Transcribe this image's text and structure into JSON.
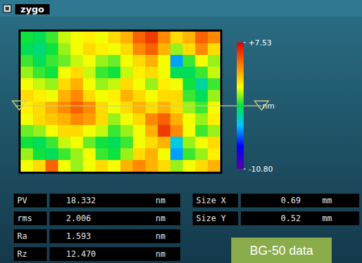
{
  "chart_data": {
    "type": "heatmap",
    "title": "zygo",
    "cells": [
      [
        -1.5,
        -2,
        -1,
        0.5,
        1,
        1.5,
        1,
        2,
        3,
        5,
        6,
        4,
        2,
        3,
        5,
        4
      ],
      [
        -2,
        -2.5,
        -1.5,
        0,
        1,
        2,
        1.5,
        1,
        2,
        4,
        5,
        3,
        0,
        2,
        4,
        2
      ],
      [
        -1,
        -2,
        -1,
        -0.5,
        0.5,
        1,
        0,
        -0.5,
        1,
        2,
        3,
        1,
        -5,
        -1,
        1,
        0
      ],
      [
        0,
        -1,
        -1.5,
        1,
        2,
        0.5,
        -1,
        -1.5,
        0.5,
        1.5,
        2,
        1,
        -2,
        -2,
        -1,
        0.5
      ],
      [
        1,
        0.5,
        0,
        2,
        3,
        1,
        0,
        0.5,
        2,
        1,
        0,
        1.5,
        1,
        -1.5,
        -3,
        -1
      ],
      [
        2,
        1.5,
        1,
        3,
        4,
        2,
        1,
        1.5,
        3,
        2,
        1,
        2,
        2,
        -1,
        -2,
        0
      ],
      [
        1.5,
        2,
        3,
        4,
        5,
        4,
        2,
        1,
        2,
        3,
        2,
        3,
        2,
        0,
        -1,
        1
      ],
      [
        1,
        2,
        2.5,
        3,
        4,
        3.5,
        2,
        0,
        1,
        2,
        4,
        5,
        3,
        1,
        0,
        1.5
      ],
      [
        -0.5,
        0,
        1,
        2,
        2,
        1,
        0.5,
        -1,
        0,
        1,
        3,
        6,
        4,
        1,
        -1,
        0
      ],
      [
        -1.5,
        -2,
        -1,
        0.5,
        1,
        -0.5,
        -1.5,
        -2,
        -1,
        1,
        2,
        3,
        -4,
        0,
        1,
        2
      ],
      [
        0,
        -1.5,
        -2,
        -1,
        0,
        1,
        -1,
        -1.5,
        0,
        2,
        3,
        1,
        -5,
        -1,
        0,
        1.5
      ],
      [
        1,
        2,
        5,
        1,
        0,
        1,
        2,
        1,
        3,
        4,
        3,
        2,
        0,
        1,
        2,
        3
      ]
    ],
    "colorbar_range": [
      -10.8,
      7.53
    ],
    "colorbar_ticks": [
      {
        "value": 7.53,
        "label": "+7.53"
      },
      {
        "value": -10.8,
        "label": "-10.80"
      }
    ],
    "colorbar_label": "nm",
    "annotation": "BG-50 data"
  },
  "panel": {
    "stats_left": [
      {
        "label": "PV",
        "value": 18.332,
        "unit": "nm"
      },
      {
        "label": "rms",
        "value": 2.006,
        "unit": "nm"
      },
      {
        "label": "Ra",
        "value": 1.593,
        "unit": "nm"
      },
      {
        "label": "Rz",
        "value": {
          "value": 12.47,
          "label": "12.470"
        },
        "unit": "nm"
      }
    ],
    "stats_right": [
      {
        "label": "Size X",
        "value": 0.69,
        "unit": "mm"
      },
      {
        "label": "Size Y",
        "value": 0.52,
        "unit": "mm"
      }
    ]
  }
}
